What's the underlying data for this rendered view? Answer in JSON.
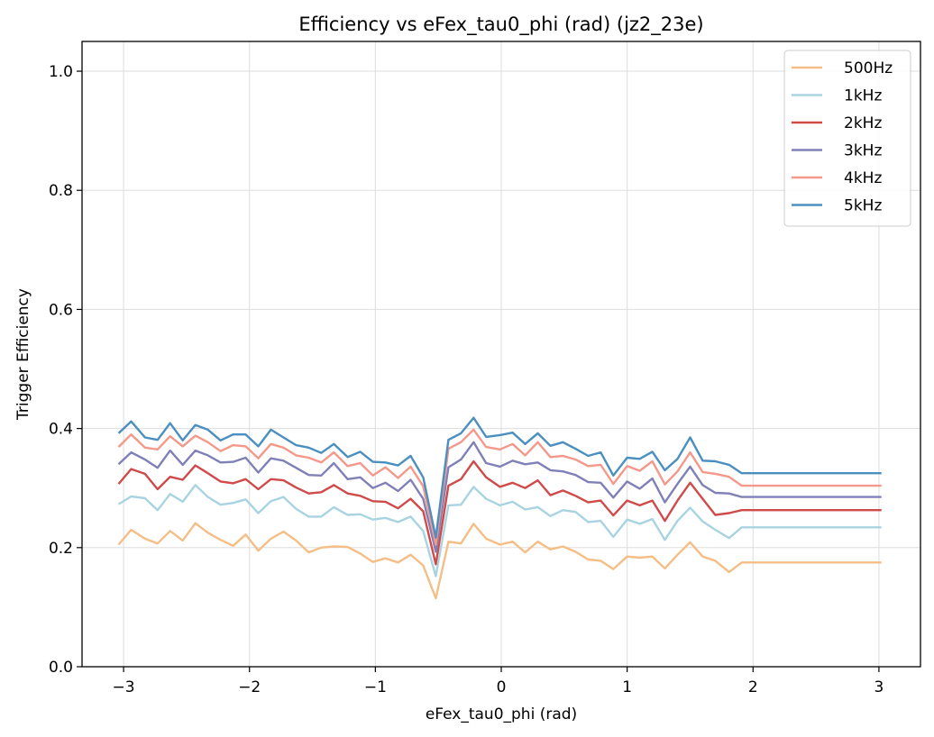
{
  "chart_data": {
    "type": "line",
    "title": "Efficiency vs eFex_tau0_phi (rad) (jz2_23e)",
    "xlabel": "eFex_tau0_phi (rad)",
    "ylabel": "Trigger Efficiency",
    "xlim": [
      -3.33,
      3.33
    ],
    "ylim": [
      0.0,
      1.05
    ],
    "xticks": [
      -3,
      -2,
      -1,
      0,
      1,
      2,
      3
    ],
    "xtick_labels": [
      "−3",
      "−2",
      "−1",
      "0",
      "1",
      "2",
      "3"
    ],
    "yticks": [
      0.0,
      0.2,
      0.4,
      0.6,
      0.8,
      1.0
    ],
    "ytick_labels": [
      "0.0",
      "0.2",
      "0.4",
      "0.6",
      "0.8",
      "1.0"
    ],
    "grid": true,
    "legend_position": "top-right",
    "x": [
      -3.04,
      -2.94,
      -2.83,
      -2.73,
      -2.63,
      -2.53,
      -2.43,
      -2.33,
      -2.23,
      -2.13,
      -2.03,
      -1.93,
      -1.83,
      -1.73,
      -1.63,
      -1.53,
      -1.43,
      -1.33,
      -1.22,
      -1.12,
      -1.02,
      -0.92,
      -0.82,
      -0.72,
      -0.62,
      -0.52,
      -0.42,
      -0.32,
      -0.22,
      -0.12,
      -0.01,
      0.09,
      0.19,
      0.29,
      0.39,
      0.49,
      0.59,
      0.69,
      0.79,
      0.89,
      1.0,
      1.1,
      1.2,
      1.3,
      1.4,
      1.5,
      1.6,
      1.7,
      1.81,
      1.91,
      2.01,
      2.11,
      2.21,
      2.31,
      2.41,
      2.51,
      2.61,
      2.71,
      2.82,
      2.92,
      3.02
    ],
    "series": [
      {
        "name": "500Hz",
        "color": "#f4be86",
        "values": [
          0.205,
          0.23,
          0.215,
          0.207,
          0.228,
          0.212,
          0.241,
          0.225,
          0.213,
          0.203,
          0.222,
          0.195,
          0.215,
          0.227,
          0.212,
          0.192,
          0.2,
          0.202,
          0.201,
          0.19,
          0.176,
          0.182,
          0.175,
          0.188,
          0.17,
          0.115,
          0.21,
          0.207,
          0.24,
          0.215,
          0.205,
          0.21,
          0.192,
          0.21,
          0.197,
          0.202,
          0.193,
          0.18,
          0.178,
          0.164,
          0.185,
          0.183,
          0.185,
          0.165,
          0.188,
          0.209,
          0.185,
          0.178,
          0.159,
          0.175,
          0.175,
          0.175,
          0.175,
          0.175,
          0.175,
          0.175,
          0.175,
          0.175,
          0.175,
          0.175,
          0.175
        ]
      },
      {
        "name": "1kHz",
        "color": "#a8d4e1",
        "values": [
          0.273,
          0.286,
          0.283,
          0.263,
          0.29,
          0.277,
          0.305,
          0.285,
          0.272,
          0.275,
          0.281,
          0.258,
          0.278,
          0.285,
          0.265,
          0.252,
          0.252,
          0.268,
          0.255,
          0.256,
          0.247,
          0.25,
          0.243,
          0.252,
          0.228,
          0.152,
          0.271,
          0.272,
          0.302,
          0.282,
          0.271,
          0.277,
          0.264,
          0.268,
          0.253,
          0.263,
          0.26,
          0.243,
          0.245,
          0.218,
          0.247,
          0.24,
          0.248,
          0.213,
          0.245,
          0.267,
          0.244,
          0.23,
          0.216,
          0.234,
          0.234,
          0.234,
          0.234,
          0.234,
          0.234,
          0.234,
          0.234,
          0.234,
          0.234,
          0.234,
          0.234
        ]
      },
      {
        "name": "2kHz",
        "color": "#d04a4a",
        "values": [
          0.307,
          0.332,
          0.324,
          0.298,
          0.319,
          0.314,
          0.338,
          0.325,
          0.311,
          0.308,
          0.315,
          0.298,
          0.315,
          0.313,
          0.301,
          0.291,
          0.293,
          0.305,
          0.291,
          0.287,
          0.278,
          0.277,
          0.266,
          0.282,
          0.261,
          0.172,
          0.304,
          0.315,
          0.345,
          0.318,
          0.302,
          0.309,
          0.3,
          0.313,
          0.288,
          0.296,
          0.287,
          0.276,
          0.279,
          0.254,
          0.279,
          0.271,
          0.279,
          0.245,
          0.279,
          0.309,
          0.282,
          0.255,
          0.258,
          0.263,
          0.263,
          0.263,
          0.263,
          0.263,
          0.263,
          0.263,
          0.263,
          0.263,
          0.263,
          0.263,
          0.263
        ]
      },
      {
        "name": "3kHz",
        "color": "#8080b8",
        "values": [
          0.34,
          0.36,
          0.348,
          0.334,
          0.363,
          0.339,
          0.363,
          0.355,
          0.343,
          0.344,
          0.351,
          0.326,
          0.35,
          0.346,
          0.334,
          0.322,
          0.321,
          0.342,
          0.315,
          0.318,
          0.3,
          0.309,
          0.295,
          0.314,
          0.282,
          0.193,
          0.335,
          0.348,
          0.377,
          0.342,
          0.336,
          0.346,
          0.34,
          0.343,
          0.33,
          0.328,
          0.322,
          0.31,
          0.309,
          0.284,
          0.311,
          0.299,
          0.316,
          0.276,
          0.307,
          0.336,
          0.305,
          0.292,
          0.291,
          0.285,
          0.285,
          0.285,
          0.285,
          0.285,
          0.285,
          0.285,
          0.285,
          0.285,
          0.285,
          0.285,
          0.285
        ]
      },
      {
        "name": "4kHz",
        "color": "#f4988a",
        "values": [
          0.369,
          0.39,
          0.368,
          0.365,
          0.387,
          0.37,
          0.388,
          0.377,
          0.362,
          0.372,
          0.37,
          0.35,
          0.374,
          0.368,
          0.355,
          0.351,
          0.343,
          0.36,
          0.337,
          0.342,
          0.321,
          0.335,
          0.317,
          0.336,
          0.303,
          0.205,
          0.366,
          0.377,
          0.398,
          0.369,
          0.365,
          0.374,
          0.355,
          0.377,
          0.352,
          0.354,
          0.348,
          0.337,
          0.339,
          0.307,
          0.337,
          0.329,
          0.345,
          0.306,
          0.328,
          0.36,
          0.327,
          0.324,
          0.319,
          0.304,
          0.304,
          0.304,
          0.304,
          0.304,
          0.304,
          0.304,
          0.304,
          0.304,
          0.304,
          0.304,
          0.304
        ]
      },
      {
        "name": "5kHz",
        "color": "#4a8fc0",
        "values": [
          0.392,
          0.412,
          0.385,
          0.381,
          0.409,
          0.38,
          0.406,
          0.398,
          0.38,
          0.39,
          0.39,
          0.37,
          0.398,
          0.385,
          0.372,
          0.368,
          0.359,
          0.374,
          0.352,
          0.361,
          0.344,
          0.343,
          0.338,
          0.354,
          0.318,
          0.217,
          0.381,
          0.392,
          0.418,
          0.386,
          0.389,
          0.393,
          0.374,
          0.392,
          0.371,
          0.377,
          0.366,
          0.354,
          0.36,
          0.321,
          0.351,
          0.349,
          0.361,
          0.33,
          0.349,
          0.385,
          0.346,
          0.345,
          0.339,
          0.325,
          0.325,
          0.325,
          0.325,
          0.325,
          0.325,
          0.325,
          0.325,
          0.325,
          0.325,
          0.325,
          0.325
        ]
      }
    ]
  }
}
